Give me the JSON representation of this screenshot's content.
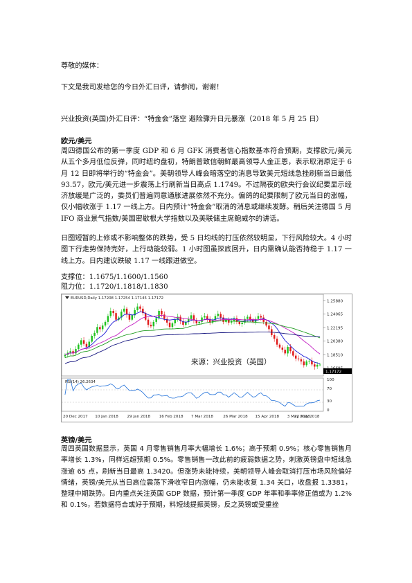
{
  "greeting": "尊敬的媒体：",
  "intro": "下文是我司发给您的今日外汇日评，请参阅，谢谢！",
  "report_title": "兴业投资(英国)外汇日评：“特金会”落空 避险骤升日元暴涨（2018 年 5 月 25 日）",
  "eurusd": {
    "heading": "欧元/美元",
    "para1": "周四德国公布的第一季度 GDP 和 6 月 GFK 消费者信心指数基本符合预期，支撑欧元/美元从五个多月低位反弹，同时纽约盘初，特朗普致信朝鲜最高领导人金正恩，表示取消原定于 6 月 12 日即将举行的“特金会”。美朝领导人峰会暗落空的消息导致美元短线急挫刷新当日最低 93.57，欧元/美元进一步震荡上行刷新当日高点 1.1749。不过隔夜的欧央行会议纪要显示经济放缓是广泛的，委员们普遍同意通胀进展依然不充分。偏鸽的纪要限制了欧元当日的涨幅，仅小幅收涨于 1.17 一线上方。日内预计“特金会”取消的消息或继续发酵。稍后关注德国 5 月 IFO 商业景气指数/美国密歇根大学指数以及美联储主席鲍威尔的讲话。",
    "para2": "日图短暂的上修或不影响整体的跌势，受 5 日均线的打压依然较明显，下行风险较大。4 小时图下行走势保持完好，上行动能较弱。1 小时图虽探底回升，日内需确认能否持稳于 1.17 一线上方。日内建议跌破 1.17 一线跟进做空。",
    "support": "支撑位：1.1675/1.1600/1.1560",
    "resistance": "阻力位：1.1720/1.1818/1.1830"
  },
  "chart": {
    "symbol_label": "EURUSD,Daily",
    "top_prices": "1.17208 1.17254 1.17145 1.17172",
    "watermark": "来源：兴业投资（英国）",
    "rsi_label": "RSI(14) 26.2634",
    "price_ticks": [
      "1.25880",
      "1.24065",
      "1.22195",
      "1.20380",
      "1.18510",
      "1.16695"
    ],
    "current_price": "1.17172",
    "rsi_ticks": [
      "100",
      "70",
      "30",
      "0"
    ],
    "dates": [
      "20 Dec 2017",
      "10 Jan 2018",
      "29 Jan 2018",
      "16 Feb 2018",
      "7 Mar 2018",
      "26 Mar 2018",
      "15 Apr 2018",
      "3 May 2018",
      "22 May 2018"
    ],
    "colors": {
      "up": "#1fc21f",
      "down": "#e01b1b",
      "ma_fast": "#1b1bd6",
      "ma_mid": "#c21fc2",
      "ma_slow": "#1f9c1f",
      "ma_long": "#161680",
      "rsi": "#1e6fd9"
    },
    "close_series": [
      1.185,
      1.188,
      1.19,
      1.187,
      1.193,
      1.199,
      1.205,
      1.2,
      1.196,
      1.203,
      1.211,
      1.215,
      1.223,
      1.22,
      1.225,
      1.23,
      1.238,
      1.245,
      1.242,
      1.233,
      1.236,
      1.244,
      1.248,
      1.24,
      1.233,
      1.239,
      1.246,
      1.251,
      1.248,
      1.242,
      1.233,
      1.226,
      1.224,
      1.23,
      1.235,
      1.245,
      1.24,
      1.234,
      1.229,
      1.223,
      1.228,
      1.233,
      1.237,
      1.231,
      1.226,
      1.23,
      1.234,
      1.239,
      1.232,
      1.228,
      1.23,
      1.236,
      1.238,
      1.234,
      1.229,
      1.233,
      1.238,
      1.241,
      1.236,
      1.23,
      1.233,
      1.229,
      1.231,
      1.235,
      1.23,
      1.227,
      1.229,
      1.234,
      1.237,
      1.233,
      1.23,
      1.234,
      1.238,
      1.236,
      1.23,
      1.225,
      1.22,
      1.212,
      1.207,
      1.199,
      1.195,
      1.192,
      1.187,
      1.196,
      1.19,
      1.184,
      1.18,
      1.179,
      1.176,
      1.171,
      1.176,
      1.177,
      1.172,
      1.169,
      1.1715,
      1.1717
    ]
  },
  "gbpusd": {
    "heading": "英镑/美元",
    "para1": "周四英国数据显示，英国 4 月零售销售月率大幅增长 1.6%；高于预期 0.9%；核心零售销售月率增长 1.3%，同样远超预期 0.5%。零售销售一改此前的疲弱数据之势，刺激英镑盘中短线急涨逾 65 点，刷新当日最高 1.3420。但涨势未能持续，美朝领导人峰会取消打压市场风险偏好情绪，英镑/美元从当日高位震荡下滑收窄日内涨幅，仍未能收复 1.34 关口，收盘报 1.3381，整理中期跌势。日内重点关注英国 GDP 数据，预计第一季度 GDP 年率和季率修正值或为 1.2%和 0.1%，若数据符合或好于预期，料短线提振英镑，反之英镑或受重挫"
  }
}
